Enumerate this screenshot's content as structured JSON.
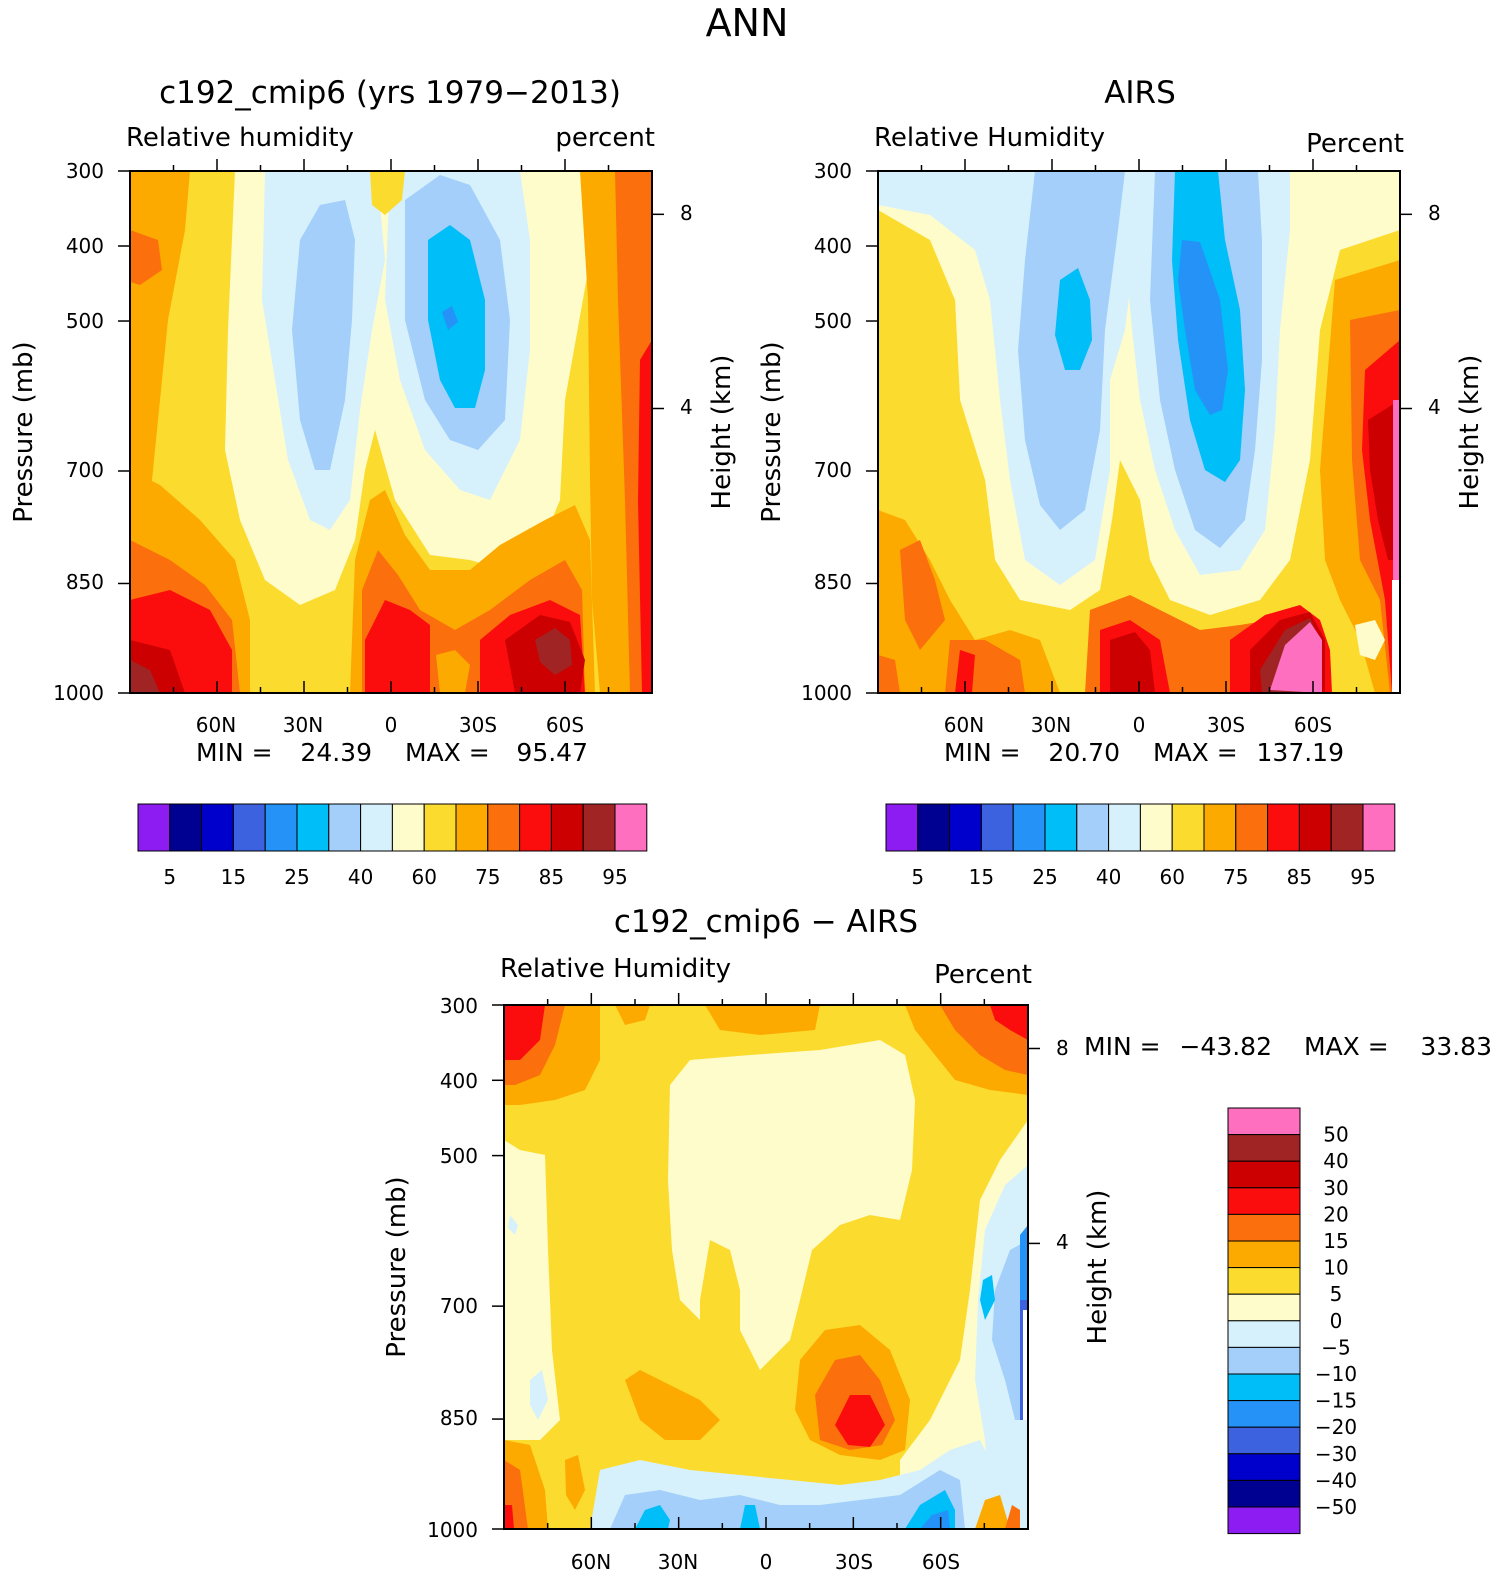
{
  "figure_title": "ANN",
  "colors": {
    "abs": [
      "#8c1cf2",
      "#000091",
      "#0000cc",
      "#3d62e0",
      "#2592f7",
      "#00bef7",
      "#a3cffa",
      "#d6f1fc",
      "#fffccc",
      "#fcdb2f",
      "#fcaa00",
      "#fc6f0d",
      "#fc0d0d",
      "#cc0000",
      "#a12424",
      "#ff6fbf"
    ],
    "diff": [
      "#8c1cf2",
      "#000091",
      "#0000cc",
      "#3d62e0",
      "#2592f7",
      "#00bef7",
      "#a3cffa",
      "#d6f1fc",
      "#fffccc",
      "#fcdb2f",
      "#fcaa00",
      "#fc6f0d",
      "#fc0d0d",
      "#cc0000",
      "#a12424",
      "#ff6fbf"
    ]
  },
  "chart_data": [
    {
      "type": "contour",
      "title": "c192_cmip6 (yrs 1979−2013)",
      "left_string": "Relative humidity",
      "right_string": "percent",
      "ylabel": "Pressure (mb)",
      "ylabel_right": "Height (km)",
      "x_ticks": [
        "60N",
        "30N",
        "0",
        "30S",
        "60S"
      ],
      "y_ticks": [
        "300",
        "400",
        "500",
        "700",
        "850",
        "1000"
      ],
      "y_ticks_right": [
        "8",
        "4"
      ],
      "min_label": "MIN =",
      "min": "24.39",
      "max_label": "MAX =",
      "max": "95.47",
      "colorbar_labels": [
        "5",
        "15",
        "25",
        "40",
        "60",
        "75",
        "85",
        "95"
      ],
      "colorbar_levels": [
        5,
        10,
        15,
        20,
        25,
        30,
        40,
        50,
        60,
        70,
        75,
        80,
        85,
        90,
        95
      ]
    },
    {
      "type": "contour",
      "title": "AIRS",
      "left_string": "Relative Humidity",
      "right_string": "Percent",
      "ylabel": "Pressure (mb)",
      "ylabel_right": "Height (km)",
      "x_ticks": [
        "60N",
        "30N",
        "0",
        "30S",
        "60S"
      ],
      "y_ticks": [
        "300",
        "400",
        "500",
        "700",
        "850",
        "1000"
      ],
      "y_ticks_right": [
        "8",
        "4"
      ],
      "min_label": "MIN =",
      "min": "20.70",
      "max_label": "MAX =",
      "max": "137.19",
      "colorbar_labels": [
        "5",
        "15",
        "25",
        "40",
        "60",
        "75",
        "85",
        "95"
      ],
      "colorbar_levels": [
        5,
        10,
        15,
        20,
        25,
        30,
        40,
        50,
        60,
        70,
        75,
        80,
        85,
        90,
        95
      ]
    },
    {
      "type": "contour",
      "title": "c192_cmip6 − AIRS",
      "left_string": "Relative Humidity",
      "right_string": "Percent",
      "ylabel": "Pressure (mb)",
      "ylabel_right": "Height (km)",
      "x_ticks": [
        "60N",
        "30N",
        "0",
        "30S",
        "60S"
      ],
      "y_ticks": [
        "300",
        "400",
        "500",
        "700",
        "850",
        "1000"
      ],
      "y_ticks_right": [
        "8",
        "4"
      ],
      "min_label": "MIN =",
      "min": "−43.82",
      "max_label": "MAX =",
      "max": "33.83",
      "colorbar_labels": [
        "50",
        "40",
        "30",
        "20",
        "15",
        "10",
        "5",
        "0",
        "−5",
        "−10",
        "−15",
        "−20",
        "−30",
        "−40",
        "−50"
      ],
      "colorbar_levels": [
        -50,
        -40,
        -30,
        -20,
        -15,
        -10,
        -5,
        0,
        5,
        10,
        15,
        20,
        30,
        40,
        50
      ]
    }
  ]
}
